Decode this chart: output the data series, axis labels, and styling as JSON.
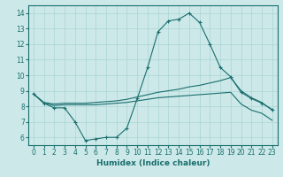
{
  "xlabel": "Humidex (Indice chaleur)",
  "bg_color": "#cce8e8",
  "line_color": "#1a6e6e",
  "grid_color": "#aad4d4",
  "xlim": [
    -0.5,
    23.5
  ],
  "ylim": [
    5.5,
    14.5
  ],
  "yticks": [
    6,
    7,
    8,
    9,
    10,
    11,
    12,
    13,
    14
  ],
  "xticks": [
    0,
    1,
    2,
    3,
    4,
    5,
    6,
    7,
    8,
    9,
    10,
    11,
    12,
    13,
    14,
    15,
    16,
    17,
    18,
    19,
    20,
    21,
    22,
    23
  ],
  "line1_x": [
    0,
    1,
    2,
    3,
    4,
    5,
    6,
    7,
    8,
    9,
    10,
    11,
    12,
    13,
    14,
    15,
    16,
    17,
    18,
    19,
    20,
    21,
    22,
    23
  ],
  "line1_y": [
    8.8,
    8.2,
    7.9,
    7.9,
    7.0,
    5.8,
    5.9,
    6.0,
    6.0,
    6.6,
    8.5,
    10.5,
    12.8,
    13.5,
    13.6,
    14.0,
    13.4,
    12.0,
    10.5,
    9.9,
    8.9,
    8.5,
    8.2,
    7.8
  ],
  "line2_x": [
    0,
    1,
    2,
    3,
    4,
    5,
    6,
    7,
    8,
    9,
    10,
    11,
    12,
    13,
    14,
    15,
    16,
    17,
    18,
    19,
    20,
    21,
    22,
    23
  ],
  "line2_y": [
    8.8,
    8.25,
    8.15,
    8.2,
    8.2,
    8.2,
    8.25,
    8.3,
    8.35,
    8.45,
    8.6,
    8.75,
    8.9,
    9.0,
    9.1,
    9.25,
    9.35,
    9.5,
    9.65,
    9.85,
    9.0,
    8.55,
    8.25,
    7.75
  ],
  "line3_x": [
    0,
    1,
    2,
    3,
    4,
    5,
    6,
    7,
    8,
    9,
    10,
    11,
    12,
    13,
    14,
    15,
    16,
    17,
    18,
    19,
    20,
    21,
    22,
    23
  ],
  "line3_y": [
    8.8,
    8.2,
    8.05,
    8.1,
    8.1,
    8.1,
    8.1,
    8.15,
    8.2,
    8.25,
    8.35,
    8.45,
    8.55,
    8.6,
    8.65,
    8.7,
    8.75,
    8.8,
    8.85,
    8.9,
    8.15,
    7.75,
    7.55,
    7.1
  ]
}
